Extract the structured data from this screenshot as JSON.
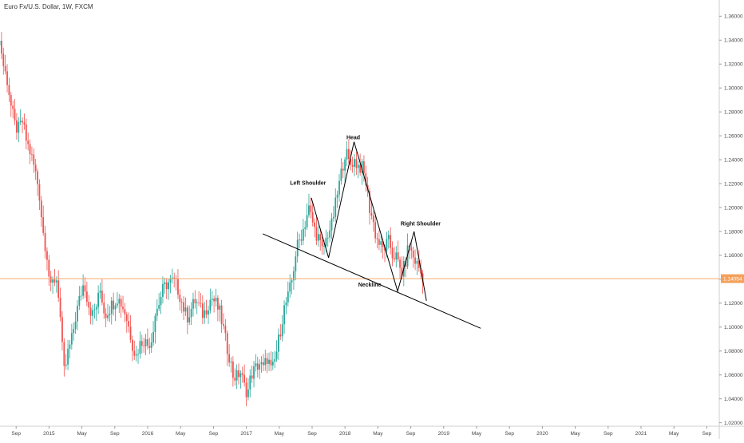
{
  "chart_data": {
    "type": "candlestick",
    "title": "Euro Fx/U.S. Dollar, 1W, FXCM",
    "colors": {
      "up": "#26a69a",
      "down": "#ef5350",
      "last_price_line": "#f5a96b",
      "last_price_badge": "#f5a05a",
      "pattern_lines": "#000000",
      "axis_border": "#cfcfcf"
    },
    "ylim": [
      1.01,
      1.37
    ],
    "y_ticks": [
      "1.36000",
      "1.34000",
      "1.32000",
      "1.30000",
      "1.28000",
      "1.26000",
      "1.24000",
      "1.22000",
      "1.20000",
      "1.18000",
      "1.16000",
      "1.14000",
      "1.12000",
      "1.10000",
      "1.08000",
      "1.06000",
      "1.04000",
      "1.02000"
    ],
    "y_tick_values": [
      1.36,
      1.34,
      1.32,
      1.3,
      1.28,
      1.26,
      1.24,
      1.22,
      1.2,
      1.18,
      1.16,
      1.14,
      1.12,
      1.1,
      1.08,
      1.06,
      1.04,
      1.02
    ],
    "x_ticks": [
      {
        "label": "Sep",
        "month": 20.0
      },
      {
        "label": "2015",
        "month": 24.0
      },
      {
        "label": "May",
        "month": 28.0
      },
      {
        "label": "Sep",
        "month": 32.0
      },
      {
        "label": "2016",
        "month": 36.0
      },
      {
        "label": "May",
        "month": 40.0
      },
      {
        "label": "Sep",
        "month": 44.0
      },
      {
        "label": "2017",
        "month": 48.0
      },
      {
        "label": "May",
        "month": 52.0
      },
      {
        "label": "Sep",
        "month": 56.0
      },
      {
        "label": "2018",
        "month": 60.0
      },
      {
        "label": "May",
        "month": 64.0
      },
      {
        "label": "Sep",
        "month": 68.0
      },
      {
        "label": "2019",
        "month": 72.0
      },
      {
        "label": "May",
        "month": 76.0
      },
      {
        "label": "Sep",
        "month": 80.0
      },
      {
        "label": "2020",
        "month": 84.0
      },
      {
        "label": "May",
        "month": 88.0
      },
      {
        "label": "Sep",
        "month": 92.0
      },
      {
        "label": "2021",
        "month": 96.0
      },
      {
        "label": "May",
        "month": 100.0
      },
      {
        "label": "Sep",
        "month": 104.0
      }
    ],
    "last_price": 1.14054,
    "last_price_label": "1.14054",
    "price_path": [
      [
        17.3,
        1.355
      ],
      [
        17.8,
        1.343
      ],
      [
        18.3,
        1.338
      ],
      [
        18.7,
        1.318
      ],
      [
        19.2,
        1.305
      ],
      [
        19.6,
        1.285
      ],
      [
        20.1,
        1.268
      ],
      [
        20.5,
        1.265
      ],
      [
        21.0,
        1.272
      ],
      [
        21.5,
        1.255
      ],
      [
        22.0,
        1.245
      ],
      [
        22.5,
        1.232
      ],
      [
        23.0,
        1.215
      ],
      [
        23.5,
        1.18
      ],
      [
        24.0,
        1.16
      ],
      [
        24.4,
        1.13
      ],
      [
        24.8,
        1.14
      ],
      [
        25.2,
        1.14
      ],
      [
        25.5,
        1.12
      ],
      [
        25.8,
        1.085
      ],
      [
        26.1,
        1.06
      ],
      [
        26.5,
        1.078
      ],
      [
        27.0,
        1.09
      ],
      [
        27.5,
        1.11
      ],
      [
        28.0,
        1.125
      ],
      [
        28.5,
        1.138
      ],
      [
        29.0,
        1.12
      ],
      [
        29.5,
        1.11
      ],
      [
        30.0,
        1.118
      ],
      [
        30.5,
        1.132
      ],
      [
        31.0,
        1.11
      ],
      [
        31.5,
        1.115
      ],
      [
        32.0,
        1.12
      ],
      [
        32.5,
        1.125
      ],
      [
        33.0,
        1.12
      ],
      [
        33.5,
        1.112
      ],
      [
        34.0,
        1.098
      ],
      [
        34.4,
        1.085
      ],
      [
        34.8,
        1.075
      ],
      [
        35.2,
        1.085
      ],
      [
        35.7,
        1.09
      ],
      [
        36.2,
        1.085
      ],
      [
        36.7,
        1.09
      ],
      [
        37.1,
        1.11
      ],
      [
        37.6,
        1.12
      ],
      [
        38.0,
        1.13
      ],
      [
        38.5,
        1.136
      ],
      [
        39.0,
        1.138
      ],
      [
        39.5,
        1.138
      ],
      [
        40.0,
        1.13
      ],
      [
        40.5,
        1.118
      ],
      [
        41.0,
        1.108
      ],
      [
        41.5,
        1.115
      ],
      [
        42.0,
        1.122
      ],
      [
        42.5,
        1.117
      ],
      [
        43.0,
        1.11
      ],
      [
        43.5,
        1.118
      ],
      [
        44.0,
        1.125
      ],
      [
        44.5,
        1.12
      ],
      [
        45.0,
        1.112
      ],
      [
        45.4,
        1.1
      ],
      [
        45.8,
        1.085
      ],
      [
        46.2,
        1.075
      ],
      [
        46.6,
        1.06
      ],
      [
        47.0,
        1.058
      ],
      [
        47.5,
        1.063
      ],
      [
        48.0,
        1.05
      ],
      [
        48.4,
        1.045
      ],
      [
        48.8,
        1.06
      ],
      [
        49.3,
        1.065
      ],
      [
        49.8,
        1.07
      ],
      [
        50.3,
        1.065
      ],
      [
        50.8,
        1.075
      ],
      [
        51.3,
        1.062
      ],
      [
        51.8,
        1.075
      ],
      [
        52.3,
        1.095
      ],
      [
        52.8,
        1.115
      ],
      [
        53.3,
        1.125
      ],
      [
        53.8,
        1.14
      ],
      [
        54.3,
        1.165
      ],
      [
        54.8,
        1.175
      ],
      [
        55.3,
        1.185
      ],
      [
        55.8,
        1.2
      ],
      [
        56.2,
        1.19
      ],
      [
        56.6,
        1.18
      ],
      [
        57.0,
        1.175
      ],
      [
        57.4,
        1.163
      ],
      [
        57.8,
        1.17
      ],
      [
        58.2,
        1.18
      ],
      [
        58.6,
        1.185
      ],
      [
        59.0,
        1.2
      ],
      [
        59.4,
        1.215
      ],
      [
        59.8,
        1.23
      ],
      [
        60.3,
        1.248
      ],
      [
        60.8,
        1.235
      ],
      [
        61.3,
        1.24
      ],
      [
        61.8,
        1.235
      ],
      [
        62.3,
        1.233
      ],
      [
        62.8,
        1.22
      ],
      [
        63.2,
        1.2
      ],
      [
        63.6,
        1.19
      ],
      [
        64.0,
        1.175
      ],
      [
        64.4,
        1.17
      ],
      [
        64.8,
        1.165
      ],
      [
        65.2,
        1.168
      ],
      [
        65.6,
        1.172
      ],
      [
        66.0,
        1.16
      ],
      [
        66.4,
        1.16
      ],
      [
        66.8,
        1.15
      ],
      [
        67.2,
        1.145
      ],
      [
        67.6,
        1.155
      ],
      [
        68.0,
        1.17
      ],
      [
        68.4,
        1.16
      ],
      [
        68.8,
        1.155
      ],
      [
        69.2,
        1.15
      ],
      [
        69.6,
        1.142
      ]
    ],
    "pattern": {
      "neckline": {
        "from": [
          50.0,
          1.178
        ],
        "to": [
          76.5,
          1.099
        ]
      },
      "zigzag": [
        [
          55.9,
          1.208
        ],
        [
          58.0,
          1.158
        ],
        [
          61.1,
          1.255
        ],
        [
          66.4,
          1.13
        ],
        [
          68.4,
          1.18
        ],
        [
          69.9,
          1.122
        ]
      ]
    },
    "annotations": [
      {
        "text": "Head",
        "month": 61.0,
        "price": 1.257
      },
      {
        "text": "Left Shoulder",
        "month": 55.5,
        "price": 1.219
      },
      {
        "text": "Right Shoulder",
        "month": 69.2,
        "price": 1.185
      },
      {
        "text": "Neckline",
        "month": 63.0,
        "price": 1.134
      }
    ]
  }
}
